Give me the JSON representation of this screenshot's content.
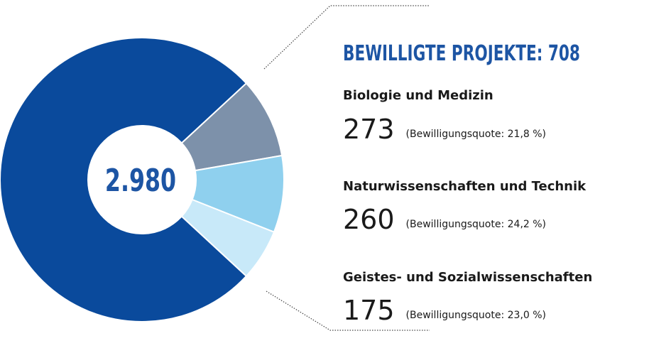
{
  "chart_data": {
    "type": "donut",
    "title": "BEWILLIGTE PROJEKTE: 708",
    "total": {
      "value": 2980,
      "label": "2.980"
    },
    "categories": [
      null,
      "Biologie und Medizin",
      "Naturwissenschaften und Technik",
      "Geistes- und Sozialwissenschaften"
    ],
    "values": [
      2272,
      273,
      260,
      175
    ],
    "notes": [
      null,
      "(Bewilligungsquote: 21,8 %)",
      "(Bewilligungsquote: 24,2 %)",
      "(Bewilligungsquote: 23,0 %)"
    ],
    "colors": [
      "#0a4a9c",
      "#7d91aa",
      "#8fd0ee",
      "#c8e9f9"
    ]
  }
}
